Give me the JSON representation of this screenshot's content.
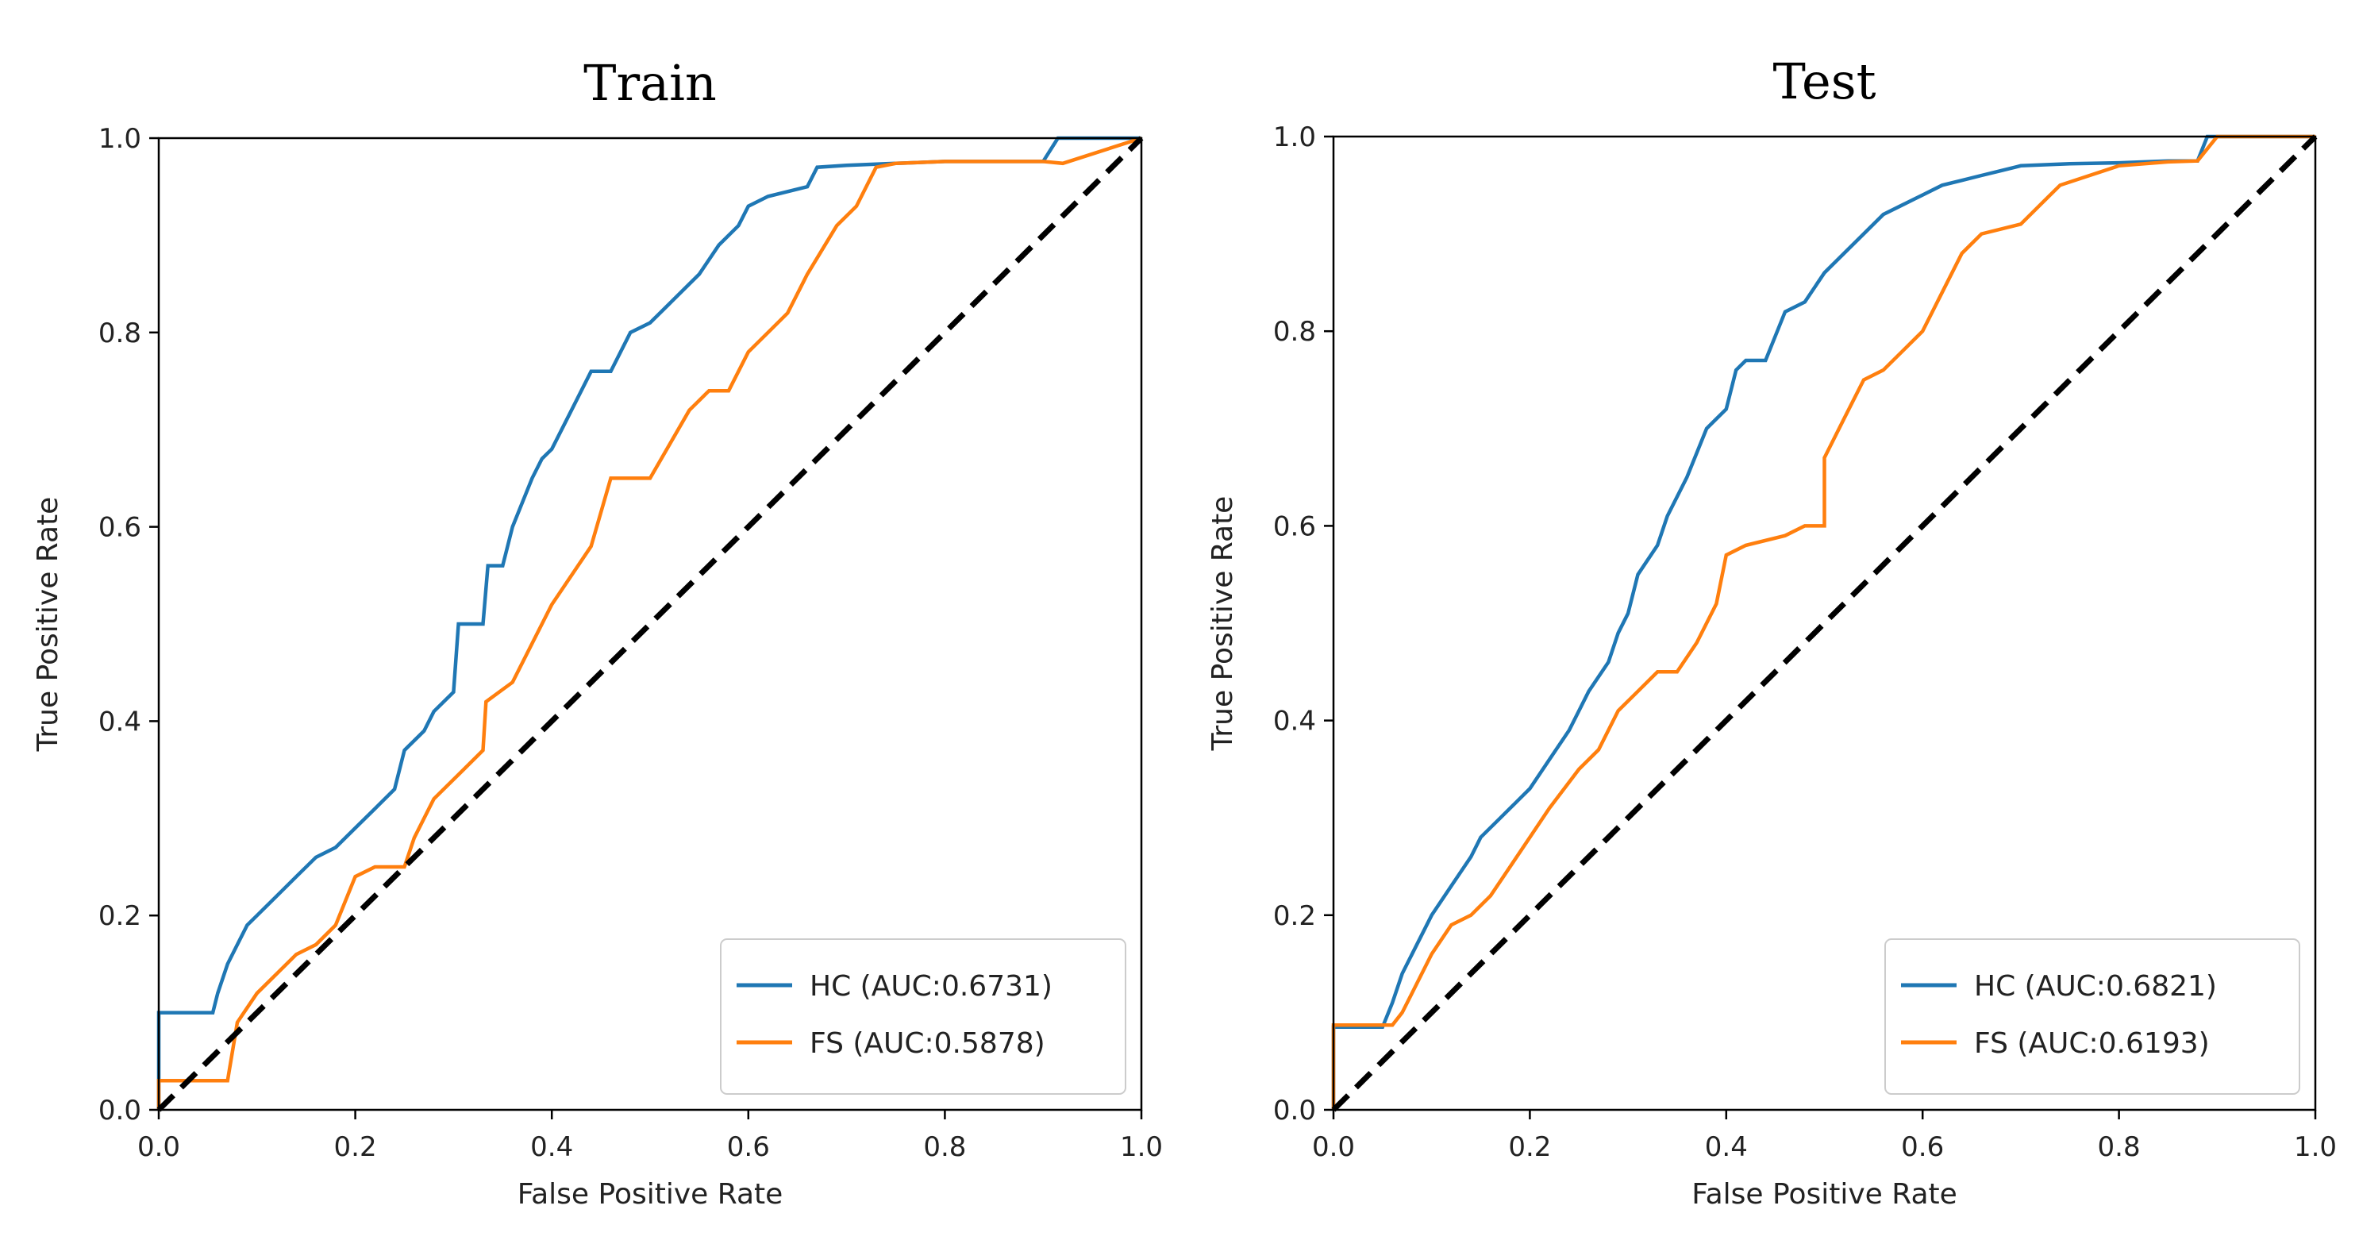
{
  "chart_data": [
    {
      "type": "line",
      "title": "Train",
      "xlabel": "False Positive Rate",
      "ylabel": "True Positive Rate",
      "xlim": [
        0.0,
        1.0
      ],
      "ylim": [
        0.0,
        1.0
      ],
      "xticks": [
        "0.0",
        "0.2",
        "0.4",
        "0.6",
        "0.8",
        "1.0"
      ],
      "yticks": [
        "0.0",
        "0.2",
        "0.4",
        "0.6",
        "0.8",
        "1.0"
      ],
      "legend_position": "lower-right",
      "series": [
        {
          "name": "HC",
          "label": "HC (AUC:0.6731)",
          "color": "#1f77b4",
          "x": [
            0.0,
            0.0,
            0.055,
            0.06,
            0.07,
            0.08,
            0.09,
            0.1,
            0.12,
            0.14,
            0.16,
            0.18,
            0.2,
            0.22,
            0.24,
            0.25,
            0.27,
            0.28,
            0.3,
            0.305,
            0.33,
            0.335,
            0.35,
            0.36,
            0.38,
            0.39,
            0.4,
            0.41,
            0.42,
            0.44,
            0.46,
            0.48,
            0.5,
            0.52,
            0.55,
            0.57,
            0.59,
            0.6,
            0.62,
            0.64,
            0.66,
            0.67,
            0.7,
            0.75,
            0.8,
            0.85,
            0.9,
            0.915,
            1.0
          ],
          "y": [
            0.0,
            0.1,
            0.1,
            0.12,
            0.15,
            0.17,
            0.19,
            0.2,
            0.22,
            0.24,
            0.26,
            0.27,
            0.29,
            0.31,
            0.33,
            0.37,
            0.39,
            0.41,
            0.43,
            0.5,
            0.5,
            0.56,
            0.56,
            0.6,
            0.65,
            0.67,
            0.68,
            0.7,
            0.72,
            0.76,
            0.76,
            0.8,
            0.81,
            0.83,
            0.86,
            0.89,
            0.91,
            0.93,
            0.94,
            0.945,
            0.95,
            0.97,
            0.972,
            0.974,
            0.976,
            0.976,
            0.976,
            1.0,
            1.0
          ]
        },
        {
          "name": "FS",
          "label": "FS (AUC:0.5878)",
          "color": "#ff7f0e",
          "x": [
            0.0,
            0.0,
            0.07,
            0.08,
            0.1,
            0.12,
            0.14,
            0.16,
            0.18,
            0.2,
            0.22,
            0.25,
            0.26,
            0.28,
            0.31,
            0.33,
            0.333,
            0.36,
            0.38,
            0.4,
            0.44,
            0.46,
            0.5,
            0.54,
            0.56,
            0.58,
            0.6,
            0.62,
            0.64,
            0.66,
            0.69,
            0.71,
            0.73,
            0.75,
            0.8,
            0.85,
            0.9,
            0.92,
            1.0
          ],
          "y": [
            0.0,
            0.03,
            0.03,
            0.09,
            0.12,
            0.14,
            0.16,
            0.17,
            0.19,
            0.24,
            0.25,
            0.25,
            0.28,
            0.32,
            0.35,
            0.37,
            0.42,
            0.44,
            0.48,
            0.52,
            0.58,
            0.65,
            0.65,
            0.72,
            0.74,
            0.74,
            0.78,
            0.8,
            0.82,
            0.86,
            0.91,
            0.93,
            0.97,
            0.974,
            0.976,
            0.976,
            0.976,
            0.974,
            1.0
          ]
        },
        {
          "name": "chance",
          "color": "#000000",
          "dashed": true,
          "x": [
            0.0,
            1.0
          ],
          "y": [
            0.0,
            1.0
          ]
        }
      ]
    },
    {
      "type": "line",
      "title": "Test",
      "xlabel": "False Positive Rate",
      "ylabel": "True Positive Rate",
      "xlim": [
        0.0,
        1.0
      ],
      "ylim": [
        0.0,
        1.0
      ],
      "xticks": [
        "0.0",
        "0.2",
        "0.4",
        "0.6",
        "0.8",
        "1.0"
      ],
      "yticks": [
        "0.0",
        "0.2",
        "0.4",
        "0.6",
        "0.8",
        "1.0"
      ],
      "legend_position": "lower-right",
      "series": [
        {
          "name": "HC",
          "label": "HC (AUC:0.6821)",
          "color": "#1f77b4",
          "x": [
            0.0,
            0.0,
            0.05,
            0.06,
            0.07,
            0.08,
            0.1,
            0.12,
            0.14,
            0.15,
            0.17,
            0.19,
            0.2,
            0.22,
            0.24,
            0.26,
            0.28,
            0.29,
            0.3,
            0.31,
            0.33,
            0.34,
            0.36,
            0.38,
            0.4,
            0.41,
            0.42,
            0.44,
            0.46,
            0.48,
            0.5,
            0.52,
            0.54,
            0.56,
            0.58,
            0.6,
            0.62,
            0.64,
            0.66,
            0.68,
            0.7,
            0.75,
            0.8,
            0.85,
            0.88,
            0.89,
            1.0
          ],
          "y": [
            0.0,
            0.085,
            0.085,
            0.11,
            0.14,
            0.16,
            0.2,
            0.23,
            0.26,
            0.28,
            0.3,
            0.32,
            0.33,
            0.36,
            0.39,
            0.43,
            0.46,
            0.49,
            0.51,
            0.55,
            0.58,
            0.61,
            0.65,
            0.7,
            0.72,
            0.76,
            0.77,
            0.77,
            0.82,
            0.83,
            0.86,
            0.88,
            0.9,
            0.92,
            0.93,
            0.94,
            0.95,
            0.955,
            0.96,
            0.965,
            0.97,
            0.972,
            0.973,
            0.975,
            0.975,
            1.0,
            1.0
          ]
        },
        {
          "name": "FS",
          "label": "FS (AUC:0.6193)",
          "color": "#ff7f0e",
          "x": [
            0.0,
            0.0,
            0.06,
            0.07,
            0.08,
            0.1,
            0.12,
            0.14,
            0.16,
            0.18,
            0.2,
            0.22,
            0.25,
            0.27,
            0.29,
            0.31,
            0.33,
            0.35,
            0.37,
            0.39,
            0.4,
            0.42,
            0.46,
            0.48,
            0.5,
            0.5,
            0.52,
            0.54,
            0.56,
            0.58,
            0.6,
            0.62,
            0.64,
            0.66,
            0.7,
            0.72,
            0.74,
            0.8,
            0.85,
            0.88,
            0.9,
            1.0
          ],
          "y": [
            0.0,
            0.087,
            0.087,
            0.1,
            0.12,
            0.16,
            0.19,
            0.2,
            0.22,
            0.25,
            0.28,
            0.31,
            0.35,
            0.37,
            0.41,
            0.43,
            0.45,
            0.45,
            0.48,
            0.52,
            0.57,
            0.58,
            0.59,
            0.6,
            0.6,
            0.67,
            0.71,
            0.75,
            0.76,
            0.78,
            0.8,
            0.84,
            0.88,
            0.9,
            0.91,
            0.93,
            0.95,
            0.97,
            0.974,
            0.975,
            1.0,
            1.0
          ]
        },
        {
          "name": "chance",
          "color": "#000000",
          "dashed": true,
          "x": [
            0.0,
            1.0
          ],
          "y": [
            0.0,
            1.0
          ]
        }
      ]
    }
  ]
}
